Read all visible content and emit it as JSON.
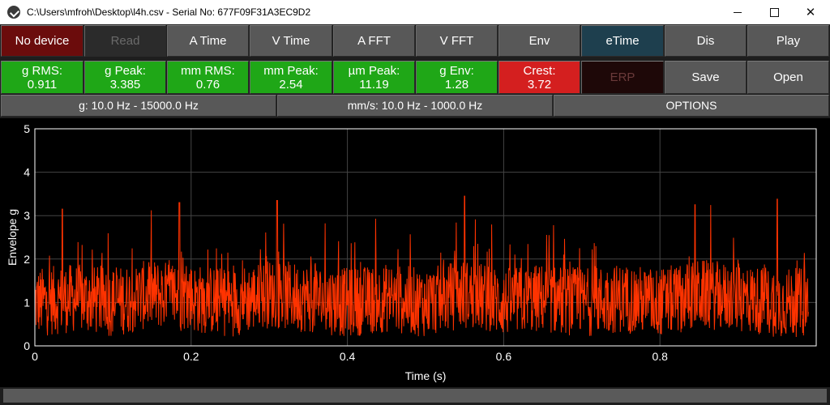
{
  "window": {
    "title": "C:\\Users\\mfroh\\Desktop\\l4h.csv - Serial No: 677F09F31A3EC9D2",
    "minimize_glyph": "—",
    "maximize_glyph": "☐",
    "close_glyph": "✕"
  },
  "toolbar": {
    "buttons": [
      {
        "label": "No device"
      },
      {
        "label": "Read"
      },
      {
        "label": "A Time"
      },
      {
        "label": "V Time"
      },
      {
        "label": "A FFT"
      },
      {
        "label": "V FFT"
      },
      {
        "label": "Env"
      },
      {
        "label": "eTime"
      },
      {
        "label": "Dis"
      },
      {
        "label": "Play"
      }
    ]
  },
  "metrics": [
    {
      "label": "g RMS:",
      "value": "0.911"
    },
    {
      "label": "g Peak:",
      "value": "3.385"
    },
    {
      "label": "mm RMS:",
      "value": "0.76"
    },
    {
      "label": "mm Peak:",
      "value": "2.54"
    },
    {
      "label": "µm Peak:",
      "value": "11.19"
    },
    {
      "label": "g Env:",
      "value": "1.28"
    },
    {
      "label": "Crest:",
      "value": "3.72"
    }
  ],
  "actions": {
    "erp_label": "ERP",
    "save_label": "Save",
    "open_label": "Open"
  },
  "filters": {
    "g_range": "g: 10.0 Hz - 15000.0 Hz",
    "v_range": "mm/s: 10.0 Hz - 1000.0 Hz",
    "options_label": "OPTIONS"
  },
  "colors": {
    "accent_green": "#1fa717",
    "alert_red": "#d41f1f",
    "series": "#ff3300"
  },
  "chart_data": {
    "type": "line",
    "title": "",
    "xlabel": "Time (s)",
    "ylabel": "Envelope g",
    "xlim": [
      0,
      1.0
    ],
    "ylim": [
      0,
      5
    ],
    "xticks": [
      "0",
      "0.2",
      "0.4",
      "0.6",
      "0.8"
    ],
    "yticks": [
      "0",
      "1",
      "2",
      "3",
      "4",
      "5"
    ],
    "grid": true,
    "series": [
      {
        "x": [
          0,
          0.05,
          0.1,
          0.15,
          0.2,
          0.25,
          0.3,
          0.35,
          0.4,
          0.45,
          0.5,
          0.55,
          0.6,
          0.65,
          0.7,
          0.75,
          0.8,
          0.85,
          0.9,
          0.95,
          0.99
        ],
        "y": [
          1.0,
          1.1,
          1.0,
          1.2,
          1.1,
          1.0,
          1.2,
          1.1,
          1.0,
          1.1,
          1.0,
          1.2,
          1.0,
          1.1,
          1.0,
          1.1,
          1.0,
          1.2,
          1.1,
          1.0,
          1.0
        ],
        "peaks": [
          {
            "x": 0.035,
            "y": 3.15
          },
          {
            "x": 0.185,
            "y": 3.3
          },
          {
            "x": 0.31,
            "y": 3.35
          },
          {
            "x": 0.55,
            "y": 3.45
          },
          {
            "x": 0.845,
            "y": 3.25
          },
          {
            "x": 0.95,
            "y": 3.38
          }
        ]
      }
    ]
  }
}
